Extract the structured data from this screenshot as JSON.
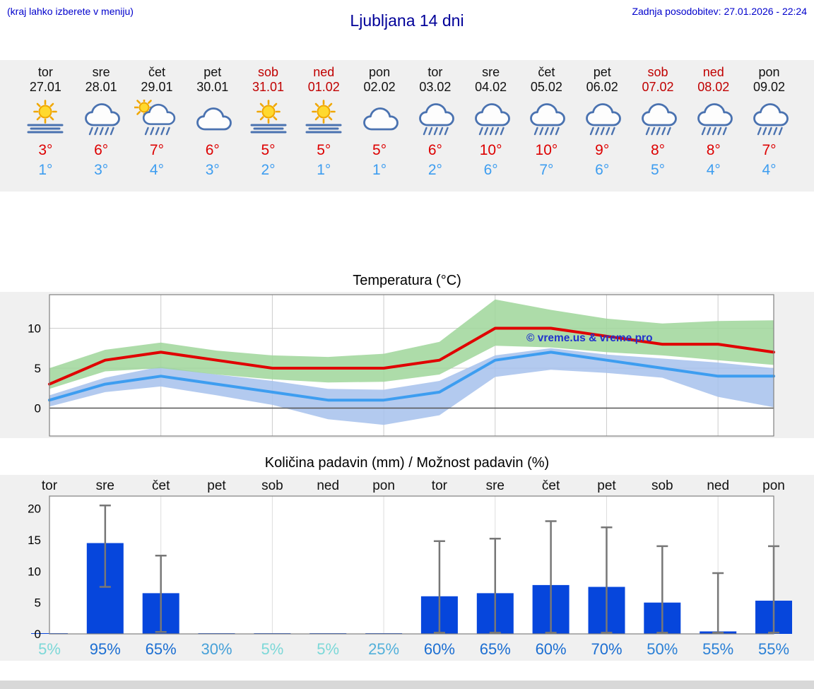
{
  "header": {
    "hint": "(kraj lahko izberete v meniju)",
    "title": "Ljubljana 14 dni",
    "last_updated": "Zadnja posodobitev: 27.01.2026 - 22:24"
  },
  "colors": {
    "accent_blue": "#0000cc",
    "title_blue": "#000099",
    "high_red": "#dd0000",
    "low_blue": "#3d9df0",
    "weekend_red": "#c00000",
    "strip_bg": "#f0f0f0",
    "bottom_bar_gray": "#d8d8d8"
  },
  "days": [
    {
      "name": "tor",
      "date": "27.01",
      "icon": "sun-fog",
      "high": "3°",
      "low": "1°",
      "weekend": false
    },
    {
      "name": "sre",
      "date": "28.01",
      "icon": "rain",
      "high": "6°",
      "low": "3°",
      "weekend": false
    },
    {
      "name": "čet",
      "date": "29.01",
      "icon": "sun-rain",
      "high": "7°",
      "low": "4°",
      "weekend": false
    },
    {
      "name": "pet",
      "date": "30.01",
      "icon": "cloud",
      "high": "6°",
      "low": "3°",
      "weekend": false
    },
    {
      "name": "sob",
      "date": "31.01",
      "icon": "sun-fog",
      "high": "5°",
      "low": "2°",
      "weekend": true
    },
    {
      "name": "ned",
      "date": "01.02",
      "icon": "sun-fog",
      "high": "5°",
      "low": "1°",
      "weekend": true
    },
    {
      "name": "pon",
      "date": "02.02",
      "icon": "cloud",
      "high": "5°",
      "low": "1°",
      "weekend": false
    },
    {
      "name": "tor",
      "date": "03.02",
      "icon": "rain",
      "high": "6°",
      "low": "2°",
      "weekend": false
    },
    {
      "name": "sre",
      "date": "04.02",
      "icon": "rain",
      "high": "10°",
      "low": "6°",
      "weekend": false
    },
    {
      "name": "čet",
      "date": "05.02",
      "icon": "rain",
      "high": "10°",
      "low": "7°",
      "weekend": false
    },
    {
      "name": "pet",
      "date": "06.02",
      "icon": "rain",
      "high": "9°",
      "low": "6°",
      "weekend": false
    },
    {
      "name": "sob",
      "date": "07.02",
      "icon": "rain",
      "high": "8°",
      "low": "5°",
      "weekend": true
    },
    {
      "name": "ned",
      "date": "08.02",
      "icon": "rain",
      "high": "8°",
      "low": "4°",
      "weekend": true
    },
    {
      "name": "pon",
      "date": "09.02",
      "icon": "rain",
      "high": "7°",
      "low": "4°",
      "weekend": false
    }
  ],
  "chart_data": [
    {
      "type": "line",
      "title": "Temperatura (°C)",
      "x_labels": [
        "27.01",
        "28.01",
        "29.01",
        "30.01",
        "31.01",
        "01.02",
        "02.02",
        "03.02",
        "04.02",
        "05.02",
        "06.02",
        "07.02",
        "08.02",
        "09.02"
      ],
      "yticks": [
        0,
        5,
        10
      ],
      "ylim": [
        -3.5,
        14.2
      ],
      "grid": "vertical-every-2-days",
      "watermark": "© vreme.us & vreme.pro",
      "series": [
        {
          "name": "max-temp",
          "color": "#e00000",
          "values": [
            3,
            6,
            7,
            6,
            5,
            5,
            5,
            6,
            10,
            10,
            9,
            8,
            8,
            7
          ]
        },
        {
          "name": "min-temp",
          "color": "#3d9df0",
          "values": [
            1,
            3,
            4,
            3,
            2,
            1,
            1,
            2,
            6,
            7,
            6,
            5,
            4,
            4
          ]
        }
      ],
      "bands": [
        {
          "name": "max-range",
          "color": "#9fd69a",
          "upper": [
            5,
            7.3,
            8.2,
            7.2,
            6.6,
            6.4,
            6.8,
            8.3,
            13.6,
            12.3,
            11.2,
            10.6,
            10.9,
            11
          ],
          "lower": [
            2.4,
            4.6,
            5,
            4.2,
            3.6,
            3.2,
            3.3,
            4.2,
            7.8,
            7.6,
            7,
            6.6,
            6,
            5.4
          ]
        },
        {
          "name": "min-range",
          "color": "#a6c1ec",
          "upper": [
            1.6,
            3.8,
            5.2,
            4.2,
            3.4,
            2.4,
            2.3,
            3.4,
            6.6,
            7.5,
            6.7,
            6.2,
            5.7,
            5
          ],
          "lower": [
            0.2,
            2,
            2.7,
            1.6,
            0.4,
            -1.4,
            -2.1,
            -0.9,
            3.9,
            4.8,
            4.4,
            3.8,
            1.4,
            0.1
          ]
        }
      ]
    },
    {
      "type": "bar",
      "title": "Količina padavin (mm) / Možnost padavin (%)",
      "categories": [
        "tor",
        "sre",
        "čet",
        "pet",
        "sob",
        "ned",
        "pon",
        "tor",
        "sre",
        "čet",
        "pet",
        "sob",
        "ned",
        "pon"
      ],
      "values": [
        0.05,
        14.5,
        6.5,
        0.05,
        0.05,
        0.05,
        0.05,
        6,
        6.5,
        7.8,
        7.5,
        5,
        0.4,
        5.3
      ],
      "whisker_low": [
        null,
        7.5,
        0.3,
        null,
        null,
        null,
        null,
        0.2,
        0.2,
        0.2,
        0.2,
        0.2,
        0.2,
        0.2
      ],
      "whisker_high": [
        null,
        20.5,
        12.5,
        null,
        null,
        null,
        null,
        14.8,
        15.2,
        18,
        17,
        14,
        9.7,
        14
      ],
      "yticks": [
        0,
        5,
        10,
        15,
        20
      ],
      "ylim": [
        0,
        22
      ],
      "bar_color": "#0646dc",
      "whisker_color": "#777777",
      "probabilities": [
        {
          "label": "5%",
          "color": "#7cd8d8"
        },
        {
          "label": "95%",
          "color": "#1b6ed2"
        },
        {
          "label": "65%",
          "color": "#1b6ed2"
        },
        {
          "label": "30%",
          "color": "#46a0d8"
        },
        {
          "label": "5%",
          "color": "#7cd8d8"
        },
        {
          "label": "5%",
          "color": "#7cd8d8"
        },
        {
          "label": "25%",
          "color": "#52b0da"
        },
        {
          "label": "60%",
          "color": "#1b6ed2"
        },
        {
          "label": "65%",
          "color": "#1b6ed2"
        },
        {
          "label": "60%",
          "color": "#1b6ed2"
        },
        {
          "label": "70%",
          "color": "#1b6ed2"
        },
        {
          "label": "50%",
          "color": "#2a80d6"
        },
        {
          "label": "55%",
          "color": "#2a80d6"
        },
        {
          "label": "55%",
          "color": "#2a80d6"
        }
      ]
    }
  ]
}
